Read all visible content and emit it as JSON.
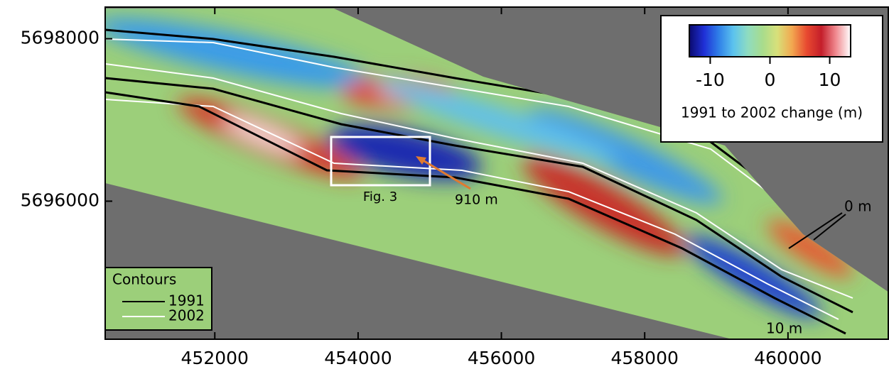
{
  "map": {
    "xlim": [
      450470,
      461400
    ],
    "ylim": [
      5694300,
      5698390
    ],
    "xticks": [
      452000,
      454000,
      456000,
      458000,
      460000
    ],
    "yticks": [
      5696000,
      5698000
    ]
  },
  "colorbar": {
    "clim": [
      -13.5,
      13.5
    ],
    "ticks": [
      -10,
      0,
      10
    ],
    "label": "1991 to 2002 change (m)",
    "colormap": [
      "#0a0a6e",
      "#1f2fd6",
      "#2f7fe8",
      "#5cc3ee",
      "#8fdcc0",
      "#a8dc8c",
      "#d8e07a",
      "#f2a850",
      "#e84a30",
      "#c41e2a",
      "#f08a90",
      "#ffffff"
    ]
  },
  "legend": {
    "title": "Contours",
    "entries": [
      {
        "label": "1991",
        "color": "#000000"
      },
      {
        "label": "2002",
        "color": "#ffffff"
      }
    ]
  },
  "annotations": {
    "box_label": "Fig. 3",
    "distance": "910 m",
    "contour_0": "0 m",
    "contour_10": "10 m"
  }
}
